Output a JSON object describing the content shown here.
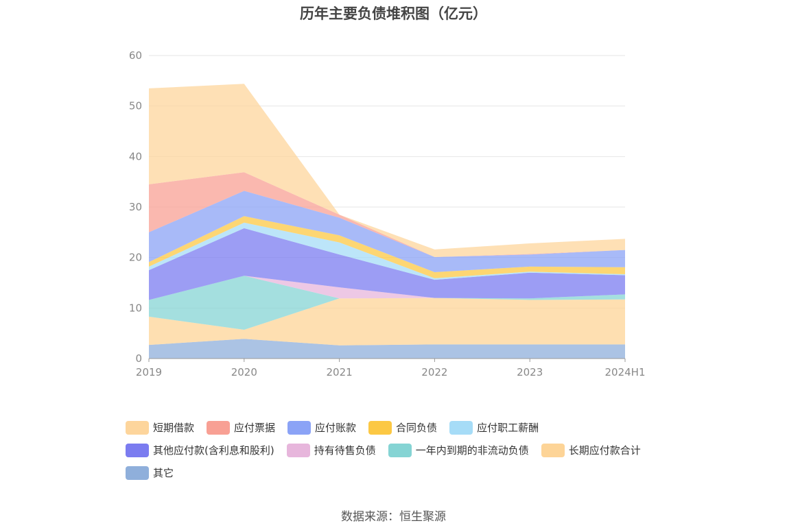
{
  "chart_data": {
    "type": "area",
    "stacked": true,
    "title": "历年主要负债堆积图（亿元）",
    "xlabel": "",
    "ylabel": "",
    "categories": [
      "2019",
      "2020",
      "2021",
      "2022",
      "2023",
      "2024H1"
    ],
    "ylim": [
      0,
      60
    ],
    "yticks": [
      "0",
      "10",
      "20",
      "30",
      "40",
      "50",
      "60"
    ],
    "grid": true,
    "legend_position": "bottom",
    "series": [
      {
        "name": "其它",
        "color": "#8fafdb",
        "values": [
          2.7,
          3.9,
          2.6,
          2.8,
          2.8,
          2.8
        ]
      },
      {
        "name": "长期应付款合计",
        "color": "#fdd497",
        "values": [
          5.6,
          1.8,
          9.3,
          9.2,
          8.8,
          8.9
        ]
      },
      {
        "name": "一年内到期的非流动负债",
        "color": "#85d4d4",
        "values": [
          3.3,
          10.7,
          0.0,
          0.0,
          0.3,
          1.0
        ]
      },
      {
        "name": "持有待售负债",
        "color": "#e7b6dc",
        "values": [
          0.0,
          0.0,
          2.2,
          0.0,
          0.0,
          0.0
        ]
      },
      {
        "name": "其他应付款(含利息和股利)",
        "color": "#7b7cf0",
        "values": [
          5.9,
          9.4,
          6.5,
          3.6,
          5.1,
          3.8
        ]
      },
      {
        "name": "应付职工薪酬",
        "color": "#a6dcf7",
        "values": [
          0.7,
          1.1,
          2.4,
          0.3,
          0.2,
          0.2
        ]
      },
      {
        "name": "合同负债",
        "color": "#fcc844",
        "values": [
          0.9,
          1.3,
          1.4,
          1.2,
          1.0,
          1.4
        ]
      },
      {
        "name": "应付账款",
        "color": "#8ba3f6",
        "values": [
          5.9,
          5.0,
          3.5,
          3.0,
          2.4,
          3.4
        ]
      },
      {
        "name": "应付票据",
        "color": "#f8a094",
        "values": [
          9.5,
          3.7,
          0.6,
          0.0,
          0.1,
          0.0
        ]
      },
      {
        "name": "短期借款",
        "color": "#fdd59c",
        "values": [
          19.0,
          17.5,
          0.0,
          1.5,
          2.1,
          2.2
        ]
      }
    ]
  },
  "legend_rows": [
    [
      "短期借款",
      "应付票据",
      "应付账款",
      "合同负债",
      "应付职工薪酬"
    ],
    [
      "其他应付款(含利息和股利)",
      "持有待售负债",
      "一年内到期的非流动负债",
      "长期应付款合计"
    ],
    [
      "其它"
    ]
  ],
  "source": "数据来源：恒生聚源"
}
